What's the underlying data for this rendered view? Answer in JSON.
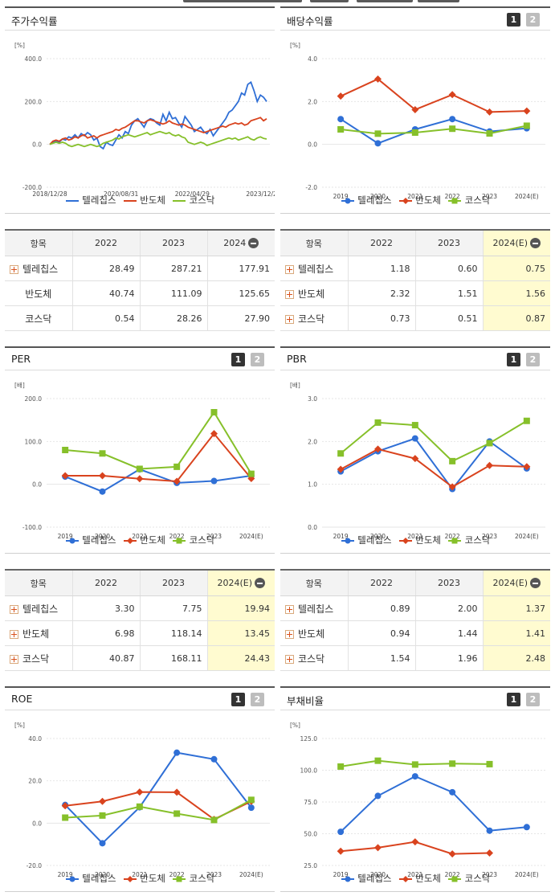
{
  "colors": {
    "telechips": "#2f6fd6",
    "semiconductor": "#d9431e",
    "kosdaq": "#86c02a"
  },
  "panels": {
    "stock": {
      "title": "주가수익률"
    },
    "dividend": {
      "title": "배당수익률"
    },
    "per": {
      "title": "PER"
    },
    "pbr": {
      "title": "PBR"
    },
    "roe": {
      "title": "ROE"
    },
    "debt": {
      "title": "부채비율"
    }
  },
  "pager": {
    "btn1": "1",
    "btn2": "2"
  },
  "legend": {
    "s1": "텔레칩스",
    "s2": "반도체",
    "s3": "코스닥"
  },
  "tables": {
    "stock": {
      "headers": [
        "항목",
        "2022",
        "2023",
        "2024"
      ],
      "rows": [
        {
          "name": "텔레칩스",
          "v": [
            "28.49",
            "287.21",
            "177.91"
          ]
        },
        {
          "name": "반도체",
          "v": [
            "40.74",
            "111.09",
            "125.65"
          ]
        },
        {
          "name": "코스닥",
          "v": [
            "0.54",
            "28.26",
            "27.90"
          ]
        }
      ]
    },
    "dividend": {
      "headers": [
        "항목",
        "2022",
        "2023",
        "2024(E)"
      ],
      "rows": [
        {
          "name": "텔레칩스",
          "v": [
            "1.18",
            "0.60",
            "0.75"
          ]
        },
        {
          "name": "반도체",
          "v": [
            "2.32",
            "1.51",
            "1.56"
          ]
        },
        {
          "name": "코스닥",
          "v": [
            "0.73",
            "0.51",
            "0.87"
          ]
        }
      ]
    },
    "per": {
      "headers": [
        "항목",
        "2022",
        "2023",
        "2024(E)"
      ],
      "rows": [
        {
          "name": "텔레칩스",
          "v": [
            "3.30",
            "7.75",
            "19.94"
          ]
        },
        {
          "name": "반도체",
          "v": [
            "6.98",
            "118.14",
            "13.45"
          ]
        },
        {
          "name": "코스닥",
          "v": [
            "40.87",
            "168.11",
            "24.43"
          ]
        }
      ]
    },
    "pbr": {
      "headers": [
        "항목",
        "2022",
        "2023",
        "2024(E)"
      ],
      "rows": [
        {
          "name": "텔레칩스",
          "v": [
            "0.89",
            "2.00",
            "1.37"
          ]
        },
        {
          "name": "반도체",
          "v": [
            "0.94",
            "1.44",
            "1.41"
          ]
        },
        {
          "name": "코스닥",
          "v": [
            "1.54",
            "1.96",
            "2.48"
          ]
        }
      ]
    }
  },
  "chart_data": [
    {
      "id": "stock",
      "type": "line",
      "title": "주가수익률",
      "unit": "[%]",
      "ylim": [
        -200,
        400
      ],
      "yticks": [
        "400.0",
        "200.0",
        "0.0",
        "-200.0"
      ],
      "xticks": [
        "2018/12/28",
        "2020/08/31",
        "2022/04/29",
        "2023/12/28"
      ],
      "x_range": [
        "2018-12-28",
        "2024-04-30"
      ],
      "series": [
        {
          "name": "텔레칩스",
          "values": [
            0,
            10,
            15,
            10,
            25,
            20,
            35,
            30,
            45,
            30,
            50,
            40,
            55,
            45,
            20,
            30,
            -10,
            -20,
            10,
            0,
            -5,
            20,
            45,
            30,
            60,
            50,
            90,
            110,
            120,
            100,
            80,
            110,
            120,
            115,
            100,
            90,
            140,
            110,
            150,
            120,
            125,
            100,
            80,
            130,
            110,
            90,
            60,
            70,
            80,
            60,
            50,
            70,
            40,
            60,
            80,
            100,
            120,
            150,
            160,
            180,
            200,
            240,
            230,
            280,
            290,
            250,
            200,
            230,
            220,
            200
          ]
        },
        {
          "name": "반도체",
          "values": [
            0,
            15,
            20,
            15,
            25,
            30,
            20,
            25,
            35,
            30,
            40,
            45,
            30,
            35,
            40,
            30,
            40,
            45,
            50,
            55,
            60,
            70,
            65,
            75,
            80,
            90,
            100,
            110,
            110,
            105,
            100,
            110,
            115,
            110,
            105,
            100,
            95,
            100,
            110,
            100,
            95,
            90,
            95,
            90,
            80,
            75,
            70,
            65,
            60,
            55,
            60,
            65,
            70,
            75,
            80,
            85,
            80,
            90,
            95,
            100,
            95,
            100,
            90,
            95,
            110,
            115,
            120,
            125,
            110,
            120
          ]
        },
        {
          "name": "코스닥",
          "values": [
            0,
            5,
            10,
            5,
            10,
            5,
            -5,
            -10,
            -5,
            0,
            -5,
            -10,
            -5,
            0,
            -5,
            -10,
            -5,
            5,
            10,
            15,
            20,
            30,
            25,
            35,
            40,
            45,
            40,
            35,
            40,
            45,
            50,
            55,
            45,
            50,
            55,
            60,
            55,
            50,
            55,
            45,
            40,
            45,
            35,
            30,
            10,
            5,
            0,
            5,
            10,
            5,
            -5,
            0,
            5,
            10,
            15,
            20,
            25,
            30,
            25,
            30,
            20,
            25,
            30,
            35,
            25,
            20,
            30,
            35,
            28,
            25
          ]
        }
      ]
    },
    {
      "id": "dividend",
      "type": "line",
      "title": "배당수익률",
      "unit": "[%]",
      "ylim": [
        -2,
        4
      ],
      "yticks": [
        "4.0",
        "2.0",
        "0.0",
        "-2.0"
      ],
      "categories": [
        "2019",
        "2020",
        "2021",
        "2022",
        "2023",
        "2024(E)"
      ],
      "series": [
        {
          "name": "텔레칩스",
          "values": [
            1.18,
            0.05,
            0.7,
            1.18,
            0.6,
            0.75
          ]
        },
        {
          "name": "반도체",
          "values": [
            2.25,
            3.05,
            1.62,
            2.32,
            1.51,
            1.56
          ]
        },
        {
          "name": "코스닥",
          "values": [
            0.7,
            0.5,
            0.55,
            0.73,
            0.51,
            0.87
          ]
        }
      ]
    },
    {
      "id": "per",
      "type": "line",
      "title": "PER",
      "unit": "[배]",
      "ylim": [
        -100,
        200
      ],
      "yticks": [
        "200.0",
        "100.0",
        "0.0",
        "-100.0"
      ],
      "categories": [
        "2019",
        "2020",
        "2021",
        "2022",
        "2023",
        "2024(E)"
      ],
      "series": [
        {
          "name": "텔레칩스",
          "values": [
            18,
            -17,
            35,
            3.3,
            7.75,
            19.94
          ]
        },
        {
          "name": "반도체",
          "values": [
            20,
            20,
            13,
            6.98,
            118.14,
            13.45
          ]
        },
        {
          "name": "코스닥",
          "values": [
            80,
            72,
            36,
            40.87,
            168.11,
            24.43
          ]
        }
      ]
    },
    {
      "id": "pbr",
      "type": "line",
      "title": "PBR",
      "unit": "[배]",
      "ylim": [
        0,
        3
      ],
      "yticks": [
        "3.0",
        "2.0",
        "1.0",
        "0.0"
      ],
      "categories": [
        "2019",
        "2020",
        "2021",
        "2022",
        "2023",
        "2024(E)"
      ],
      "series": [
        {
          "name": "텔레칩스",
          "values": [
            1.3,
            1.77,
            2.07,
            0.89,
            2.0,
            1.37
          ]
        },
        {
          "name": "반도체",
          "values": [
            1.35,
            1.82,
            1.6,
            0.94,
            1.44,
            1.41
          ]
        },
        {
          "name": "코스닥",
          "values": [
            1.72,
            2.44,
            2.38,
            1.54,
            1.96,
            2.48
          ]
        }
      ]
    },
    {
      "id": "roe",
      "type": "line",
      "title": "ROE",
      "unit": "[%]",
      "ylim": [
        -20,
        40
      ],
      "yticks": [
        "40.0",
        "20.0",
        "0.0",
        "-20.0"
      ],
      "categories": [
        "2019",
        "2020",
        "2021",
        "2022",
        "2023",
        "2024(E)"
      ],
      "series": [
        {
          "name": "텔레칩스",
          "values": [
            8.6,
            -9.5,
            7.5,
            33.3,
            30.2,
            7.3
          ]
        },
        {
          "name": "반도체",
          "values": [
            8.2,
            10.3,
            14.7,
            14.6,
            1.8,
            10.3
          ]
        },
        {
          "name": "코스닥",
          "values": [
            2.6,
            3.6,
            7.8,
            4.5,
            1.5,
            11.0
          ]
        }
      ]
    },
    {
      "id": "debt",
      "type": "line",
      "title": "부채비율",
      "unit": "[%]",
      "ylim": [
        25,
        125
      ],
      "yticks": [
        "125.0",
        "100.0",
        "75.0",
        "50.0",
        "25.0"
      ],
      "categories": [
        "2019",
        "2020",
        "2021",
        "2022",
        "2023",
        "2024(E)"
      ],
      "series": [
        {
          "name": "텔레칩스",
          "values": [
            51.5,
            79.8,
            95.2,
            82.7,
            52.4,
            55.2
          ]
        },
        {
          "name": "반도체",
          "values": [
            36.2,
            39.0,
            43.6,
            34.1,
            34.8,
            null
          ]
        },
        {
          "name": "코스닥",
          "values": [
            102.9,
            107.5,
            104.5,
            105.2,
            104.8,
            null
          ]
        }
      ]
    }
  ]
}
